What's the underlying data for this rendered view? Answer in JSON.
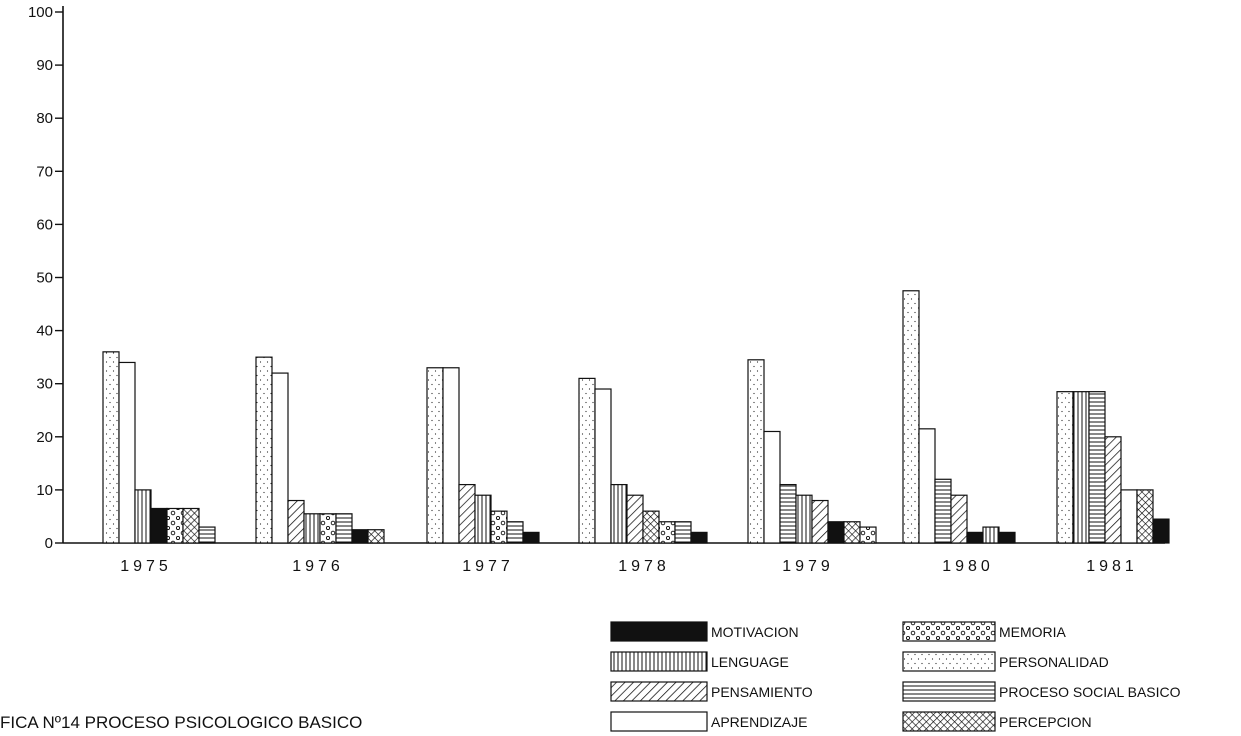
{
  "chart_data": {
    "type": "bar",
    "title": "FICA Nº14  PROCESO PSICOLOGICO BASICO",
    "xlabel": "",
    "ylabel": "",
    "ylim": [
      0,
      100
    ],
    "yticks": [
      0,
      10,
      20,
      30,
      40,
      50,
      60,
      70,
      80,
      90,
      100
    ],
    "grid": false,
    "legend_position": "bottom-right",
    "categories": [
      "1975",
      "1976",
      "1977",
      "1978",
      "1979",
      "1980",
      "1981"
    ],
    "series": [
      {
        "name": "PERSONALIDAD",
        "pattern": "dots",
        "values": [
          36,
          35,
          33,
          31,
          34.5,
          47.5,
          28.5
        ]
      },
      {
        "name": "APRENDIZAJE",
        "pattern": "blank",
        "values": [
          34,
          32,
          33,
          29,
          21,
          21.5,
          10
        ]
      },
      {
        "name": "LENGUAGE",
        "pattern": "vertical",
        "values": [
          10,
          5.5,
          9,
          11,
          9,
          3,
          28.5
        ]
      },
      {
        "name": "PROCESO SOCIAL BASICO",
        "pattern": "horizontal",
        "values": [
          3,
          5.5,
          4,
          4,
          11,
          12,
          28.5
        ]
      },
      {
        "name": "PENSAMIENTO",
        "pattern": "diagonal",
        "values": [
          0,
          8,
          11,
          9,
          8,
          9,
          20
        ]
      },
      {
        "name": "MOTIVACION",
        "pattern": "solid",
        "values": [
          6.5,
          2.5,
          2,
          2,
          4,
          2,
          4.5
        ]
      },
      {
        "name": "MEMORIA",
        "pattern": "circles",
        "values": [
          6.5,
          5.5,
          6,
          4,
          3,
          0,
          0
        ]
      },
      {
        "name": "PERCEPCION",
        "pattern": "crosshatch",
        "values": [
          6.5,
          2.5,
          0,
          6,
          4,
          0,
          10
        ]
      }
    ],
    "bar_order": [
      [
        "PERSONALIDAD",
        "APRENDIZAJE",
        "LENGUAGE",
        "MOTIVACION",
        "MEMORIA",
        "PERCEPCION",
        "PROCESO SOCIAL BASICO"
      ],
      [
        "PERSONALIDAD",
        "APRENDIZAJE",
        "PENSAMIENTO",
        "LENGUAGE",
        "MEMORIA",
        "PROCESO SOCIAL BASICO",
        "MOTIVACION",
        "PERCEPCION"
      ],
      [
        "PERSONALIDAD",
        "APRENDIZAJE",
        "PENSAMIENTO",
        "LENGUAGE",
        "MEMORIA",
        "PROCESO SOCIAL BASICO",
        "MOTIVACION"
      ],
      [
        "PERSONALIDAD",
        "APRENDIZAJE",
        "LENGUAGE",
        "PENSAMIENTO",
        "PERCEPCION",
        "MEMORIA",
        "PROCESO SOCIAL BASICO",
        "MOTIVACION"
      ],
      [
        "PERSONALIDAD",
        "APRENDIZAJE",
        "PROCESO SOCIAL BASICO",
        "LENGUAGE",
        "PENSAMIENTO",
        "MOTIVACION",
        "PERCEPCION",
        "MEMORIA"
      ],
      [
        "PERSONALIDAD",
        "APRENDIZAJE",
        "PROCESO SOCIAL BASICO",
        "PENSAMIENTO",
        "MOTIVACION",
        "LENGUAGE",
        "MOTIVACION"
      ],
      [
        "PERSONALIDAD",
        "LENGUAGE",
        "PROCESO SOCIAL BASICO",
        "PENSAMIENTO",
        "APRENDIZAJE",
        "PERCEPCION",
        "MOTIVACION"
      ]
    ],
    "legend": [
      {
        "label": "MOTIVACION",
        "pattern": "solid"
      },
      {
        "label": "LENGUAGE",
        "pattern": "vertical"
      },
      {
        "label": "PENSAMIENTO",
        "pattern": "diagonal"
      },
      {
        "label": "APRENDIZAJE",
        "pattern": "blank"
      },
      {
        "label": "MEMORIA",
        "pattern": "circles"
      },
      {
        "label": "PERSONALIDAD",
        "pattern": "dots"
      },
      {
        "label": "PROCESO SOCIAL BASICO",
        "pattern": "horizontal"
      },
      {
        "label": "PERCEPCION",
        "pattern": "crosshatch"
      }
    ]
  }
}
